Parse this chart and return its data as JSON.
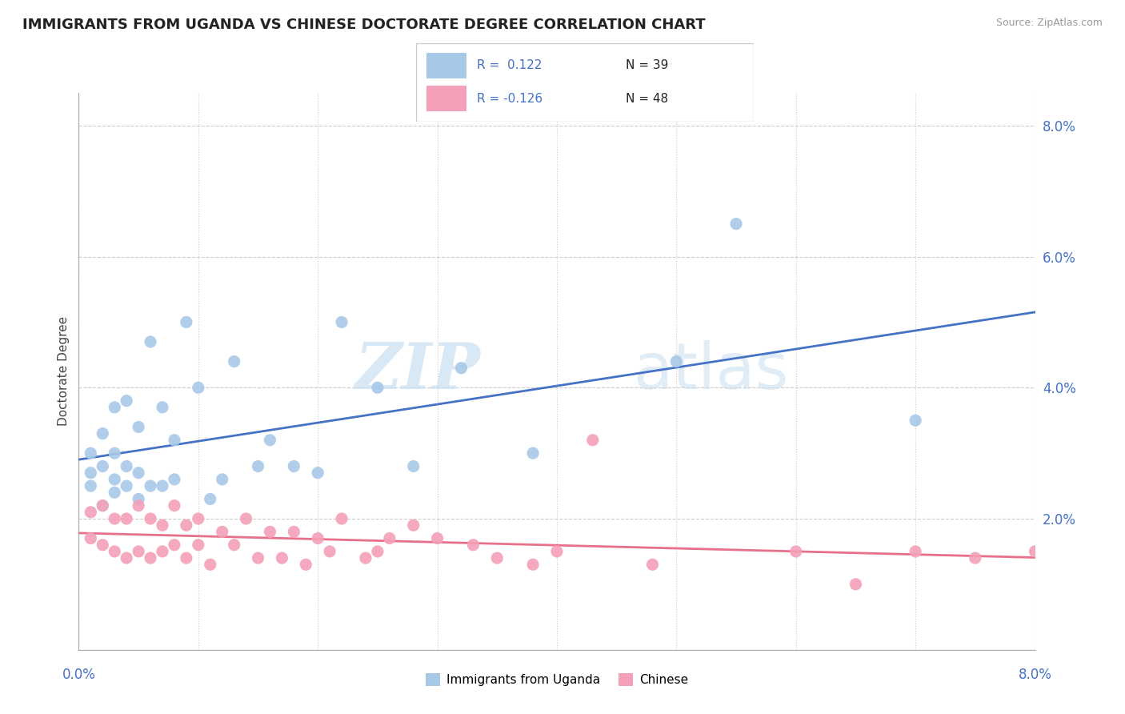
{
  "title": "IMMIGRANTS FROM UGANDA VS CHINESE DOCTORATE DEGREE CORRELATION CHART",
  "source": "Source: ZipAtlas.com",
  "ylabel": "Doctorate Degree",
  "xmin": 0.0,
  "xmax": 0.08,
  "ymin": 0.0,
  "ymax": 0.085,
  "yticks": [
    0.0,
    0.02,
    0.04,
    0.06,
    0.08
  ],
  "xticks": [
    0.0,
    0.01,
    0.02,
    0.03,
    0.04,
    0.05,
    0.06,
    0.07,
    0.08
  ],
  "color_blue": "#a8c8e8",
  "color_pink": "#f4a0b8",
  "color_blue_line": "#4472c4",
  "color_pink_line": "#e8708a",
  "uganda_x": [
    0.001,
    0.001,
    0.001,
    0.002,
    0.002,
    0.002,
    0.003,
    0.003,
    0.003,
    0.003,
    0.004,
    0.004,
    0.004,
    0.005,
    0.005,
    0.005,
    0.006,
    0.006,
    0.007,
    0.007,
    0.008,
    0.008,
    0.009,
    0.01,
    0.011,
    0.012,
    0.013,
    0.015,
    0.016,
    0.018,
    0.02,
    0.022,
    0.025,
    0.028,
    0.032,
    0.038,
    0.05,
    0.055,
    0.07
  ],
  "uganda_y": [
    0.025,
    0.027,
    0.03,
    0.022,
    0.028,
    0.033,
    0.024,
    0.026,
    0.03,
    0.037,
    0.025,
    0.028,
    0.038,
    0.023,
    0.027,
    0.034,
    0.025,
    0.047,
    0.025,
    0.037,
    0.026,
    0.032,
    0.05,
    0.04,
    0.023,
    0.026,
    0.044,
    0.028,
    0.032,
    0.028,
    0.027,
    0.05,
    0.04,
    0.028,
    0.043,
    0.03,
    0.044,
    0.065,
    0.035
  ],
  "chinese_x": [
    0.001,
    0.001,
    0.002,
    0.002,
    0.003,
    0.003,
    0.004,
    0.004,
    0.005,
    0.005,
    0.006,
    0.006,
    0.007,
    0.007,
    0.008,
    0.008,
    0.009,
    0.009,
    0.01,
    0.01,
    0.011,
    0.012,
    0.013,
    0.014,
    0.015,
    0.016,
    0.017,
    0.018,
    0.019,
    0.02,
    0.021,
    0.022,
    0.024,
    0.025,
    0.026,
    0.028,
    0.03,
    0.033,
    0.035,
    0.038,
    0.04,
    0.043,
    0.048,
    0.06,
    0.065,
    0.07,
    0.075,
    0.08
  ],
  "chinese_y": [
    0.017,
    0.021,
    0.016,
    0.022,
    0.015,
    0.02,
    0.014,
    0.02,
    0.015,
    0.022,
    0.014,
    0.02,
    0.015,
    0.019,
    0.016,
    0.022,
    0.014,
    0.019,
    0.016,
    0.02,
    0.013,
    0.018,
    0.016,
    0.02,
    0.014,
    0.018,
    0.014,
    0.018,
    0.013,
    0.017,
    0.015,
    0.02,
    0.014,
    0.015,
    0.017,
    0.019,
    0.017,
    0.016,
    0.014,
    0.013,
    0.015,
    0.032,
    0.013,
    0.015,
    0.01,
    0.015,
    0.014,
    0.015
  ],
  "legend_r1": "R =  0.122",
  "legend_n1": "N = 39",
  "legend_r2": "R = -0.126",
  "legend_n2": "N = 48"
}
